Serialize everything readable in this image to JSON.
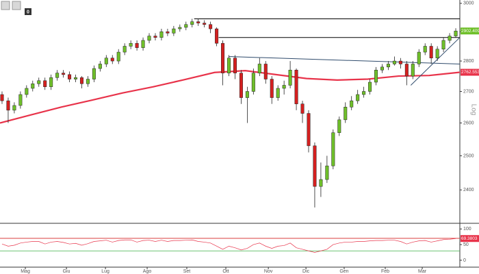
{
  "toolbar": {
    "label": "0"
  },
  "chart_data": [
    {
      "type": "candlestick",
      "log": true,
      "scale_label": "Log",
      "up_color": "#6fbf2a",
      "down_color": "#d42020",
      "x": [
        1,
        4,
        7,
        10,
        13,
        16,
        19,
        22,
        25,
        28,
        31,
        34,
        37,
        40,
        43,
        46,
        49,
        52,
        55,
        58,
        61,
        64,
        67,
        70,
        73,
        76,
        79,
        82,
        85,
        88,
        91,
        94,
        97,
        100,
        103,
        106,
        109,
        112,
        115,
        118,
        121,
        124,
        127,
        130,
        133,
        136,
        139,
        142,
        145,
        148,
        151,
        154,
        157,
        160,
        163,
        166,
        169,
        172,
        175,
        178,
        181,
        184,
        187,
        190,
        193,
        196,
        199,
        202,
        205,
        208,
        211,
        214,
        217,
        220,
        223
      ],
      "open": [
        2690,
        2670,
        2640,
        2655,
        2690,
        2710,
        2725,
        2735,
        2715,
        2745,
        2760,
        2755,
        2740,
        2745,
        2725,
        2740,
        2775,
        2790,
        2810,
        2800,
        2830,
        2850,
        2860,
        2845,
        2870,
        2885,
        2880,
        2900,
        2895,
        2910,
        2915,
        2925,
        2935,
        2930,
        2925,
        2910,
        2860,
        2760,
        2810,
        2760,
        2680,
        2700,
        2760,
        2790,
        2740,
        2680,
        2710,
        2720,
        2770,
        2660,
        2630,
        2530,
        2410,
        2430,
        2470,
        2570,
        2610,
        2650,
        2670,
        2690,
        2700,
        2730,
        2770,
        2780,
        2790,
        2800,
        2790,
        2750,
        2790,
        2830,
        2850,
        2810,
        2840,
        2870,
        2885
      ],
      "high": [
        2700,
        2680,
        2665,
        2700,
        2720,
        2735,
        2745,
        2745,
        2755,
        2770,
        2770,
        2765,
        2755,
        2750,
        2750,
        2785,
        2800,
        2820,
        2820,
        2840,
        2860,
        2870,
        2870,
        2880,
        2895,
        2895,
        2910,
        2910,
        2920,
        2925,
        2935,
        2945,
        2945,
        2940,
        2935,
        2915,
        2870,
        2820,
        2820,
        2770,
        2715,
        2775,
        2810,
        2800,
        2750,
        2720,
        2735,
        2800,
        2775,
        2670,
        2640,
        2540,
        2480,
        2500,
        2580,
        2620,
        2665,
        2685,
        2705,
        2715,
        2740,
        2780,
        2790,
        2800,
        2815,
        2810,
        2800,
        2800,
        2840,
        2860,
        2860,
        2850,
        2880,
        2895,
        2912
      ],
      "low": [
        2660,
        2600,
        2630,
        2645,
        2680,
        2700,
        2715,
        2705,
        2705,
        2735,
        2745,
        2730,
        2730,
        2710,
        2715,
        2730,
        2765,
        2780,
        2790,
        2790,
        2820,
        2840,
        2835,
        2835,
        2860,
        2870,
        2870,
        2885,
        2885,
        2900,
        2905,
        2915,
        2920,
        2915,
        2895,
        2850,
        2720,
        2750,
        2740,
        2660,
        2600,
        2690,
        2750,
        2725,
        2660,
        2670,
        2690,
        2710,
        2640,
        2600,
        2510,
        2350,
        2380,
        2420,
        2460,
        2560,
        2600,
        2640,
        2660,
        2680,
        2690,
        2720,
        2760,
        2770,
        2785,
        2775,
        2720,
        2740,
        2780,
        2820,
        2790,
        2800,
        2830,
        2860,
        2880
      ],
      "close": [
        2670,
        2640,
        2655,
        2690,
        2710,
        2725,
        2735,
        2715,
        2745,
        2760,
        2755,
        2740,
        2745,
        2725,
        2740,
        2775,
        2790,
        2810,
        2800,
        2830,
        2850,
        2860,
        2845,
        2870,
        2885,
        2880,
        2900,
        2895,
        2910,
        2915,
        2925,
        2935,
        2930,
        2925,
        2910,
        2860,
        2760,
        2810,
        2760,
        2680,
        2700,
        2760,
        2790,
        2740,
        2680,
        2710,
        2720,
        2770,
        2660,
        2630,
        2530,
        2410,
        2430,
        2470,
        2570,
        2610,
        2650,
        2670,
        2690,
        2700,
        2730,
        2770,
        2780,
        2790,
        2800,
        2790,
        2750,
        2790,
        2830,
        2850,
        2810,
        2840,
        2870,
        2885,
        2902.4099
      ],
      "last_label": "2902.4099",
      "ma": {
        "color": "#e8334a",
        "x": [
          0,
          15,
          30,
          45,
          60,
          75,
          90,
          105,
          120,
          135,
          150,
          165,
          180,
          195,
          210,
          225
        ],
        "values": [
          2600,
          2625,
          2650,
          2672,
          2695,
          2715,
          2738,
          2762,
          2768,
          2755,
          2742,
          2737,
          2740,
          2750,
          2752,
          2762.5535
        ],
        "last_label": "2762.5535"
      },
      "lines": [
        {
          "x1": 95,
          "y1": 2945,
          "x2": 225,
          "y2": 2945,
          "color": "#000000"
        },
        {
          "x1": 107,
          "y1": 2880,
          "x2": 225,
          "y2": 2880,
          "color": "#000000"
        },
        {
          "x1": 112,
          "y1": 2815,
          "x2": 225,
          "y2": 2790,
          "color": "#2e4a6b"
        },
        {
          "x1": 201,
          "y1": 2720,
          "x2": 225,
          "y2": 2880,
          "color": "#2e4a6b"
        }
      ],
      "xlim": [
        0,
        225
      ],
      "ylim": [
        2306,
        3012
      ],
      "yticks": [
        2400,
        2500,
        2600,
        2700,
        2800,
        2900,
        3000
      ]
    },
    {
      "type": "line",
      "color": "#e8334a",
      "x": [
        1,
        4,
        7,
        10,
        13,
        16,
        19,
        22,
        25,
        28,
        31,
        34,
        37,
        40,
        43,
        46,
        49,
        52,
        55,
        58,
        61,
        64,
        67,
        70,
        73,
        76,
        79,
        82,
        85,
        88,
        91,
        94,
        97,
        100,
        103,
        106,
        109,
        112,
        115,
        118,
        121,
        124,
        127,
        130,
        133,
        136,
        139,
        142,
        145,
        148,
        151,
        154,
        157,
        160,
        163,
        166,
        169,
        172,
        175,
        178,
        181,
        184,
        187,
        190,
        193,
        196,
        199,
        202,
        205,
        208,
        211,
        214,
        217,
        220,
        223
      ],
      "values": [
        52,
        45,
        48,
        55,
        58,
        60,
        60,
        52,
        58,
        60,
        57,
        52,
        54,
        48,
        53,
        60,
        62,
        64,
        58,
        63,
        65,
        65,
        58,
        63,
        64,
        60,
        64,
        60,
        63,
        63,
        64,
        65,
        60,
        58,
        55,
        45,
        35,
        45,
        40,
        33,
        38,
        50,
        55,
        45,
        38,
        45,
        47,
        55,
        40,
        35,
        30,
        25,
        30,
        35,
        50,
        55,
        58,
        58,
        60,
        60,
        62,
        63,
        63,
        64,
        64,
        60,
        52,
        58,
        62,
        63,
        58,
        62,
        66,
        67,
        69.3803
      ],
      "last_label": "69.3803",
      "levels": [
        {
          "value": 70,
          "color": "#d42020"
        },
        {
          "value": 30,
          "color": "#3cb043"
        }
      ],
      "xlim": [
        0,
        225
      ],
      "ylim": [
        -22,
        118
      ],
      "yticks": [
        0,
        50,
        100
      ],
      "xticks": [
        {
          "value": 12.4,
          "label": "Mag"
        },
        {
          "value": 32.5,
          "label": "Giu"
        },
        {
          "value": 51.6,
          "label": "Lug"
        },
        {
          "value": 72,
          "label": "Ago"
        },
        {
          "value": 91.4,
          "label": "Set"
        },
        {
          "value": 110.5,
          "label": "Ott"
        },
        {
          "value": 131.3,
          "label": "Nov"
        },
        {
          "value": 149.7,
          "label": "Dic"
        },
        {
          "value": 168.4,
          "label": "Gen"
        },
        {
          "value": 188.5,
          "label": "Feb"
        },
        {
          "value": 206.6,
          "label": "Mar"
        }
      ]
    }
  ]
}
